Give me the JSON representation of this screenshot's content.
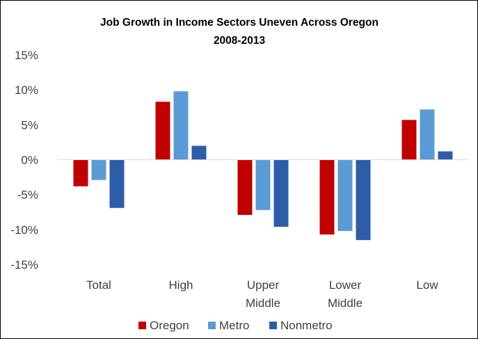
{
  "chart_data": {
    "type": "bar",
    "title": "Job Growth in Income Sectors Uneven Across Oregon",
    "subtitle": "2008-2013",
    "xlabel": "",
    "ylabel": "",
    "categories": [
      [
        "Total"
      ],
      [
        "High"
      ],
      [
        "Upper",
        "Middle"
      ],
      [
        "Lower",
        "Middle"
      ],
      [
        "Low"
      ]
    ],
    "series": [
      {
        "name": "Oregon",
        "color": "#C00000",
        "values": [
          -3.8,
          8.3,
          -7.9,
          -10.7,
          5.7
        ]
      },
      {
        "name": "Metro",
        "color": "#5B9BD5",
        "values": [
          -2.9,
          9.8,
          -7.2,
          -10.2,
          7.2
        ]
      },
      {
        "name": "Nonmetro",
        "color": "#2E5DA8",
        "values": [
          -6.9,
          2.0,
          -9.6,
          -11.5,
          1.2
        ]
      }
    ],
    "ylim": [
      -15,
      15
    ],
    "yticks": [
      15,
      10,
      5,
      0,
      -5,
      -10,
      -15
    ],
    "ytick_labels": [
      "15%",
      "10%",
      "5%",
      "0%",
      "-5%",
      "-10%",
      "-15%"
    ],
    "legend_position": "bottom",
    "grid": false,
    "axis_color": "#D9D9D9"
  }
}
